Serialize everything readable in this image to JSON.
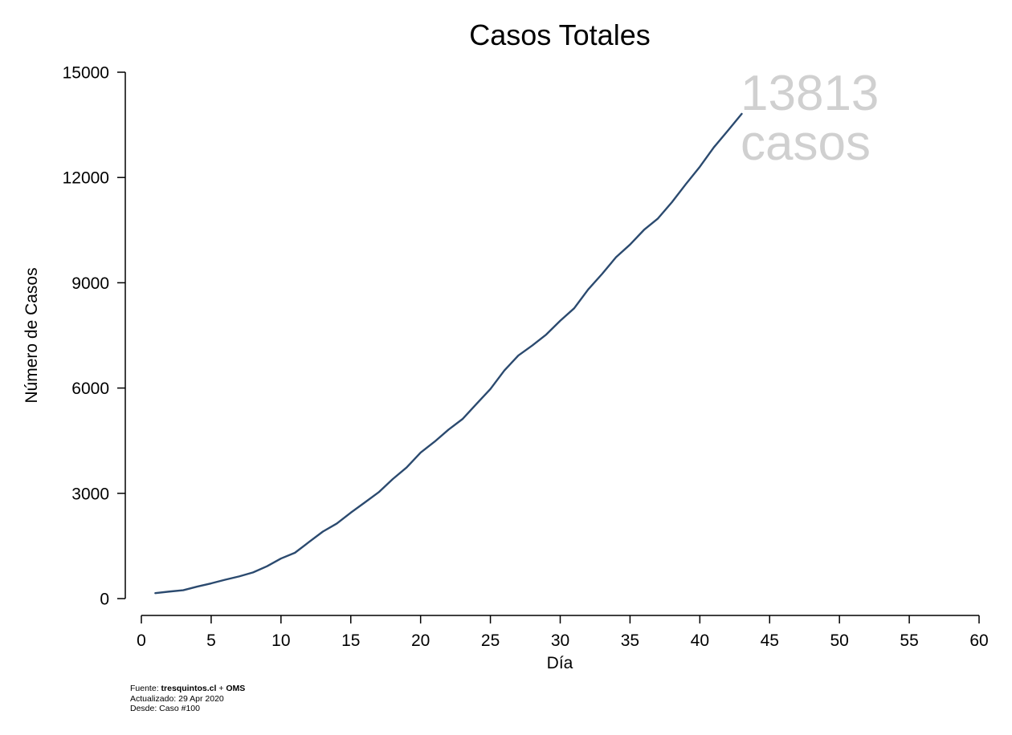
{
  "chart_data": {
    "type": "line",
    "title": "Casos Totales",
    "xlabel": "Día",
    "ylabel": "Número de Casos",
    "xlim": [
      0,
      60
    ],
    "ylim": [
      0,
      15000
    ],
    "xticks": [
      "0",
      "5",
      "10",
      "15",
      "20",
      "25",
      "30",
      "35",
      "40",
      "45",
      "50",
      "55",
      "60"
    ],
    "yticks": [
      "0",
      "3000",
      "6000",
      "9000",
      "12000",
      "15000"
    ],
    "grid": false,
    "legend": "none",
    "line_color": "#2b4a6f",
    "annotation": {
      "value": "13813",
      "unit": "casos"
    },
    "series": [
      {
        "x": [
          1,
          2,
          3,
          4,
          5,
          6,
          7,
          8,
          9,
          10,
          11,
          12,
          13,
          14,
          15,
          16,
          17,
          18,
          19,
          20,
          21,
          22,
          23,
          24,
          25,
          26,
          27,
          28,
          29,
          30,
          31,
          32,
          33,
          34,
          35,
          36,
          37,
          38,
          39,
          40,
          41,
          42,
          43
        ],
        "values": [
          155,
          200,
          238,
          342,
          434,
          537,
          632,
          746,
          922,
          1142,
          1306,
          1610,
          1909,
          2139,
          2449,
          2738,
          3031,
          3404,
          3737,
          4161,
          4471,
          4815,
          5116,
          5546,
          5972,
          6501,
          6927,
          7213,
          7525,
          7917,
          8273,
          8807,
          9252,
          9730,
          10088,
          10507,
          10832,
          11296,
          11812,
          12306,
          12858,
          13331,
          13813
        ]
      }
    ]
  },
  "footnote": {
    "source_prefix": "Fuente: ",
    "source_bold": "tresquintos.cl",
    "source_mid": " + ",
    "source_bold2": "OMS",
    "updated": "Actualizado: 29 Apr 2020",
    "since": "Desde: Caso #100"
  }
}
